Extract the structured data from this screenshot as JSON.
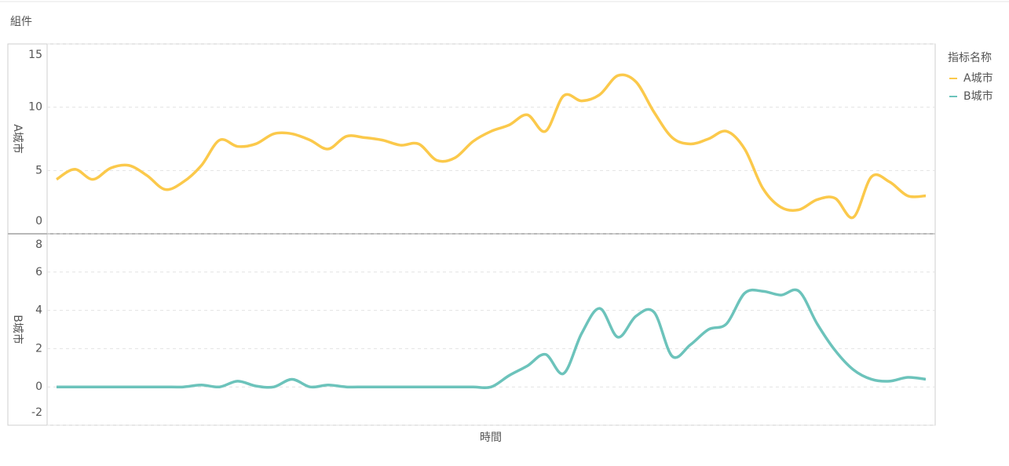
{
  "header": {
    "title": "組件"
  },
  "legend": {
    "title": "指标名称"
  },
  "xlabel": "時間",
  "chart_data": [
    {
      "type": "line",
      "ylabel": "A城市",
      "ylim": [
        0,
        15
      ],
      "yticks": [
        0,
        5,
        10,
        15
      ],
      "grid": true,
      "series": [
        {
          "name": "A城市",
          "color": "#fbc94b",
          "values": [
            4.3,
            5.1,
            4.3,
            5.2,
            5.4,
            4.6,
            3.5,
            4.1,
            5.4,
            7.4,
            6.9,
            7.1,
            7.9,
            7.9,
            7.4,
            6.7,
            7.7,
            7.6,
            7.4,
            7.0,
            7.1,
            5.8,
            6.0,
            7.3,
            8.1,
            8.6,
            9.4,
            8.1,
            10.9,
            10.5,
            11.0,
            12.5,
            12.0,
            9.6,
            7.6,
            7.1,
            7.5,
            8.1,
            6.7,
            3.6,
            2.1,
            1.9,
            2.7,
            2.8,
            1.3,
            4.5,
            4.1,
            3.0,
            3.0
          ]
        }
      ]
    },
    {
      "type": "line",
      "ylabel": "B城市",
      "ylim": [
        -2,
        8
      ],
      "yticks": [
        -2,
        0,
        2,
        4,
        6,
        8
      ],
      "grid": true,
      "series": [
        {
          "name": "B城市",
          "color": "#6cc3bb",
          "values": [
            0,
            0,
            0,
            0,
            0,
            0,
            0,
            0,
            0.1,
            0,
            0.3,
            0.05,
            0,
            0.4,
            0,
            0.1,
            0,
            0,
            0,
            0,
            0,
            0,
            0,
            0,
            0,
            0.6,
            1.1,
            1.7,
            0.7,
            2.8,
            4.1,
            2.6,
            3.7,
            3.9,
            1.6,
            2.2,
            3.0,
            3.3,
            4.9,
            5.0,
            4.8,
            5.0,
            3.3,
            1.9,
            0.9,
            0.4,
            0.3,
            0.5,
            0.4
          ]
        }
      ]
    }
  ]
}
